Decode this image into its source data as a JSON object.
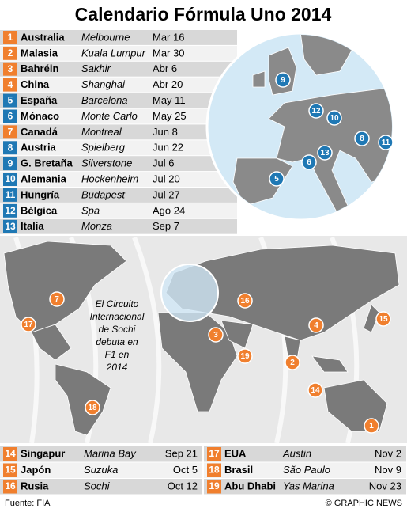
{
  "title": "Calendario Fórmula Uno 2014",
  "table": {
    "rows": [
      {
        "num": "1",
        "country": "Australia",
        "city": "Melbourne",
        "date": "Mar 16",
        "color": "#f07f2e"
      },
      {
        "num": "2",
        "country": "Malasia",
        "city": "Kuala Lumpur",
        "date": "Mar 30",
        "color": "#f07f2e"
      },
      {
        "num": "3",
        "country": "Bahréin",
        "city": "Sakhir",
        "date": "Abr 6",
        "color": "#f07f2e"
      },
      {
        "num": "4",
        "country": "China",
        "city": "Shanghai",
        "date": "Abr 20",
        "color": "#f07f2e"
      },
      {
        "num": "5",
        "country": "España",
        "city": "Barcelona",
        "date": "May 11",
        "color": "#1f78b4"
      },
      {
        "num": "6",
        "country": "Mónaco",
        "city": "Monte Carlo",
        "date": "May 25",
        "color": "#1f78b4"
      },
      {
        "num": "7",
        "country": "Canadá",
        "city": "Montreal",
        "date": "Jun 8",
        "color": "#f07f2e"
      },
      {
        "num": "8",
        "country": "Austria",
        "city": "Spielberg",
        "date": "Jun 22",
        "color": "#1f78b4"
      },
      {
        "num": "9",
        "country": "G. Bretaña",
        "city": "Silverstone",
        "date": "Jul 6",
        "color": "#1f78b4"
      },
      {
        "num": "10",
        "country": "Alemania",
        "city": "Hockenheim",
        "date": "Jul 20",
        "color": "#1f78b4"
      },
      {
        "num": "11",
        "country": "Hungría",
        "city": "Budapest",
        "date": "Jul 27",
        "color": "#1f78b4"
      },
      {
        "num": "12",
        "country": "Bélgica",
        "city": "Spa",
        "date": "Ago 24",
        "color": "#1f78b4"
      },
      {
        "num": "13",
        "country": "Italia",
        "city": "Monza",
        "date": "Sep 7",
        "color": "#1f78b4"
      }
    ]
  },
  "bottom_table": {
    "rows": [
      {
        "num": "14",
        "country": "Singapur",
        "city": "Marina Bay",
        "date": "Sep 21",
        "color": "#f07f2e"
      },
      {
        "num": "15",
        "country": "Japón",
        "city": "Suzuka",
        "date": "Oct 5",
        "color": "#f07f2e"
      },
      {
        "num": "16",
        "country": "Rusia",
        "city": "Sochi",
        "date": "Oct 12",
        "color": "#f07f2e"
      },
      {
        "num": "17",
        "country": "EUA",
        "city": "Austin",
        "date": "Nov 2",
        "color": "#f07f2e"
      },
      {
        "num": "18",
        "country": "Brasil",
        "city": "São Paulo",
        "date": "Nov 9",
        "color": "#f07f2e"
      },
      {
        "num": "19",
        "country": "Abu Dhabi",
        "city": "Yas Marina",
        "date": "Nov 23",
        "color": "#f07f2e"
      }
    ]
  },
  "europe_markers": [
    {
      "label": "9"
    },
    {
      "label": "12"
    },
    {
      "label": "10"
    },
    {
      "label": "8"
    },
    {
      "label": "11"
    },
    {
      "label": "13"
    },
    {
      "label": "6"
    },
    {
      "label": "5"
    }
  ],
  "world_markers": [
    {
      "label": "7"
    },
    {
      "label": "17"
    },
    {
      "label": "16"
    },
    {
      "label": "3"
    },
    {
      "label": "19"
    },
    {
      "label": "4"
    },
    {
      "label": "15"
    },
    {
      "label": "2"
    },
    {
      "label": "14"
    },
    {
      "label": "18"
    },
    {
      "label": "1"
    }
  ],
  "annotation": [
    "El Circuito",
    "Internacional",
    "de Sochi",
    "debuta en",
    "F1 en",
    "2014"
  ],
  "source": "Fuente: FIA",
  "credit": "© GRAPHIC NEWS"
}
